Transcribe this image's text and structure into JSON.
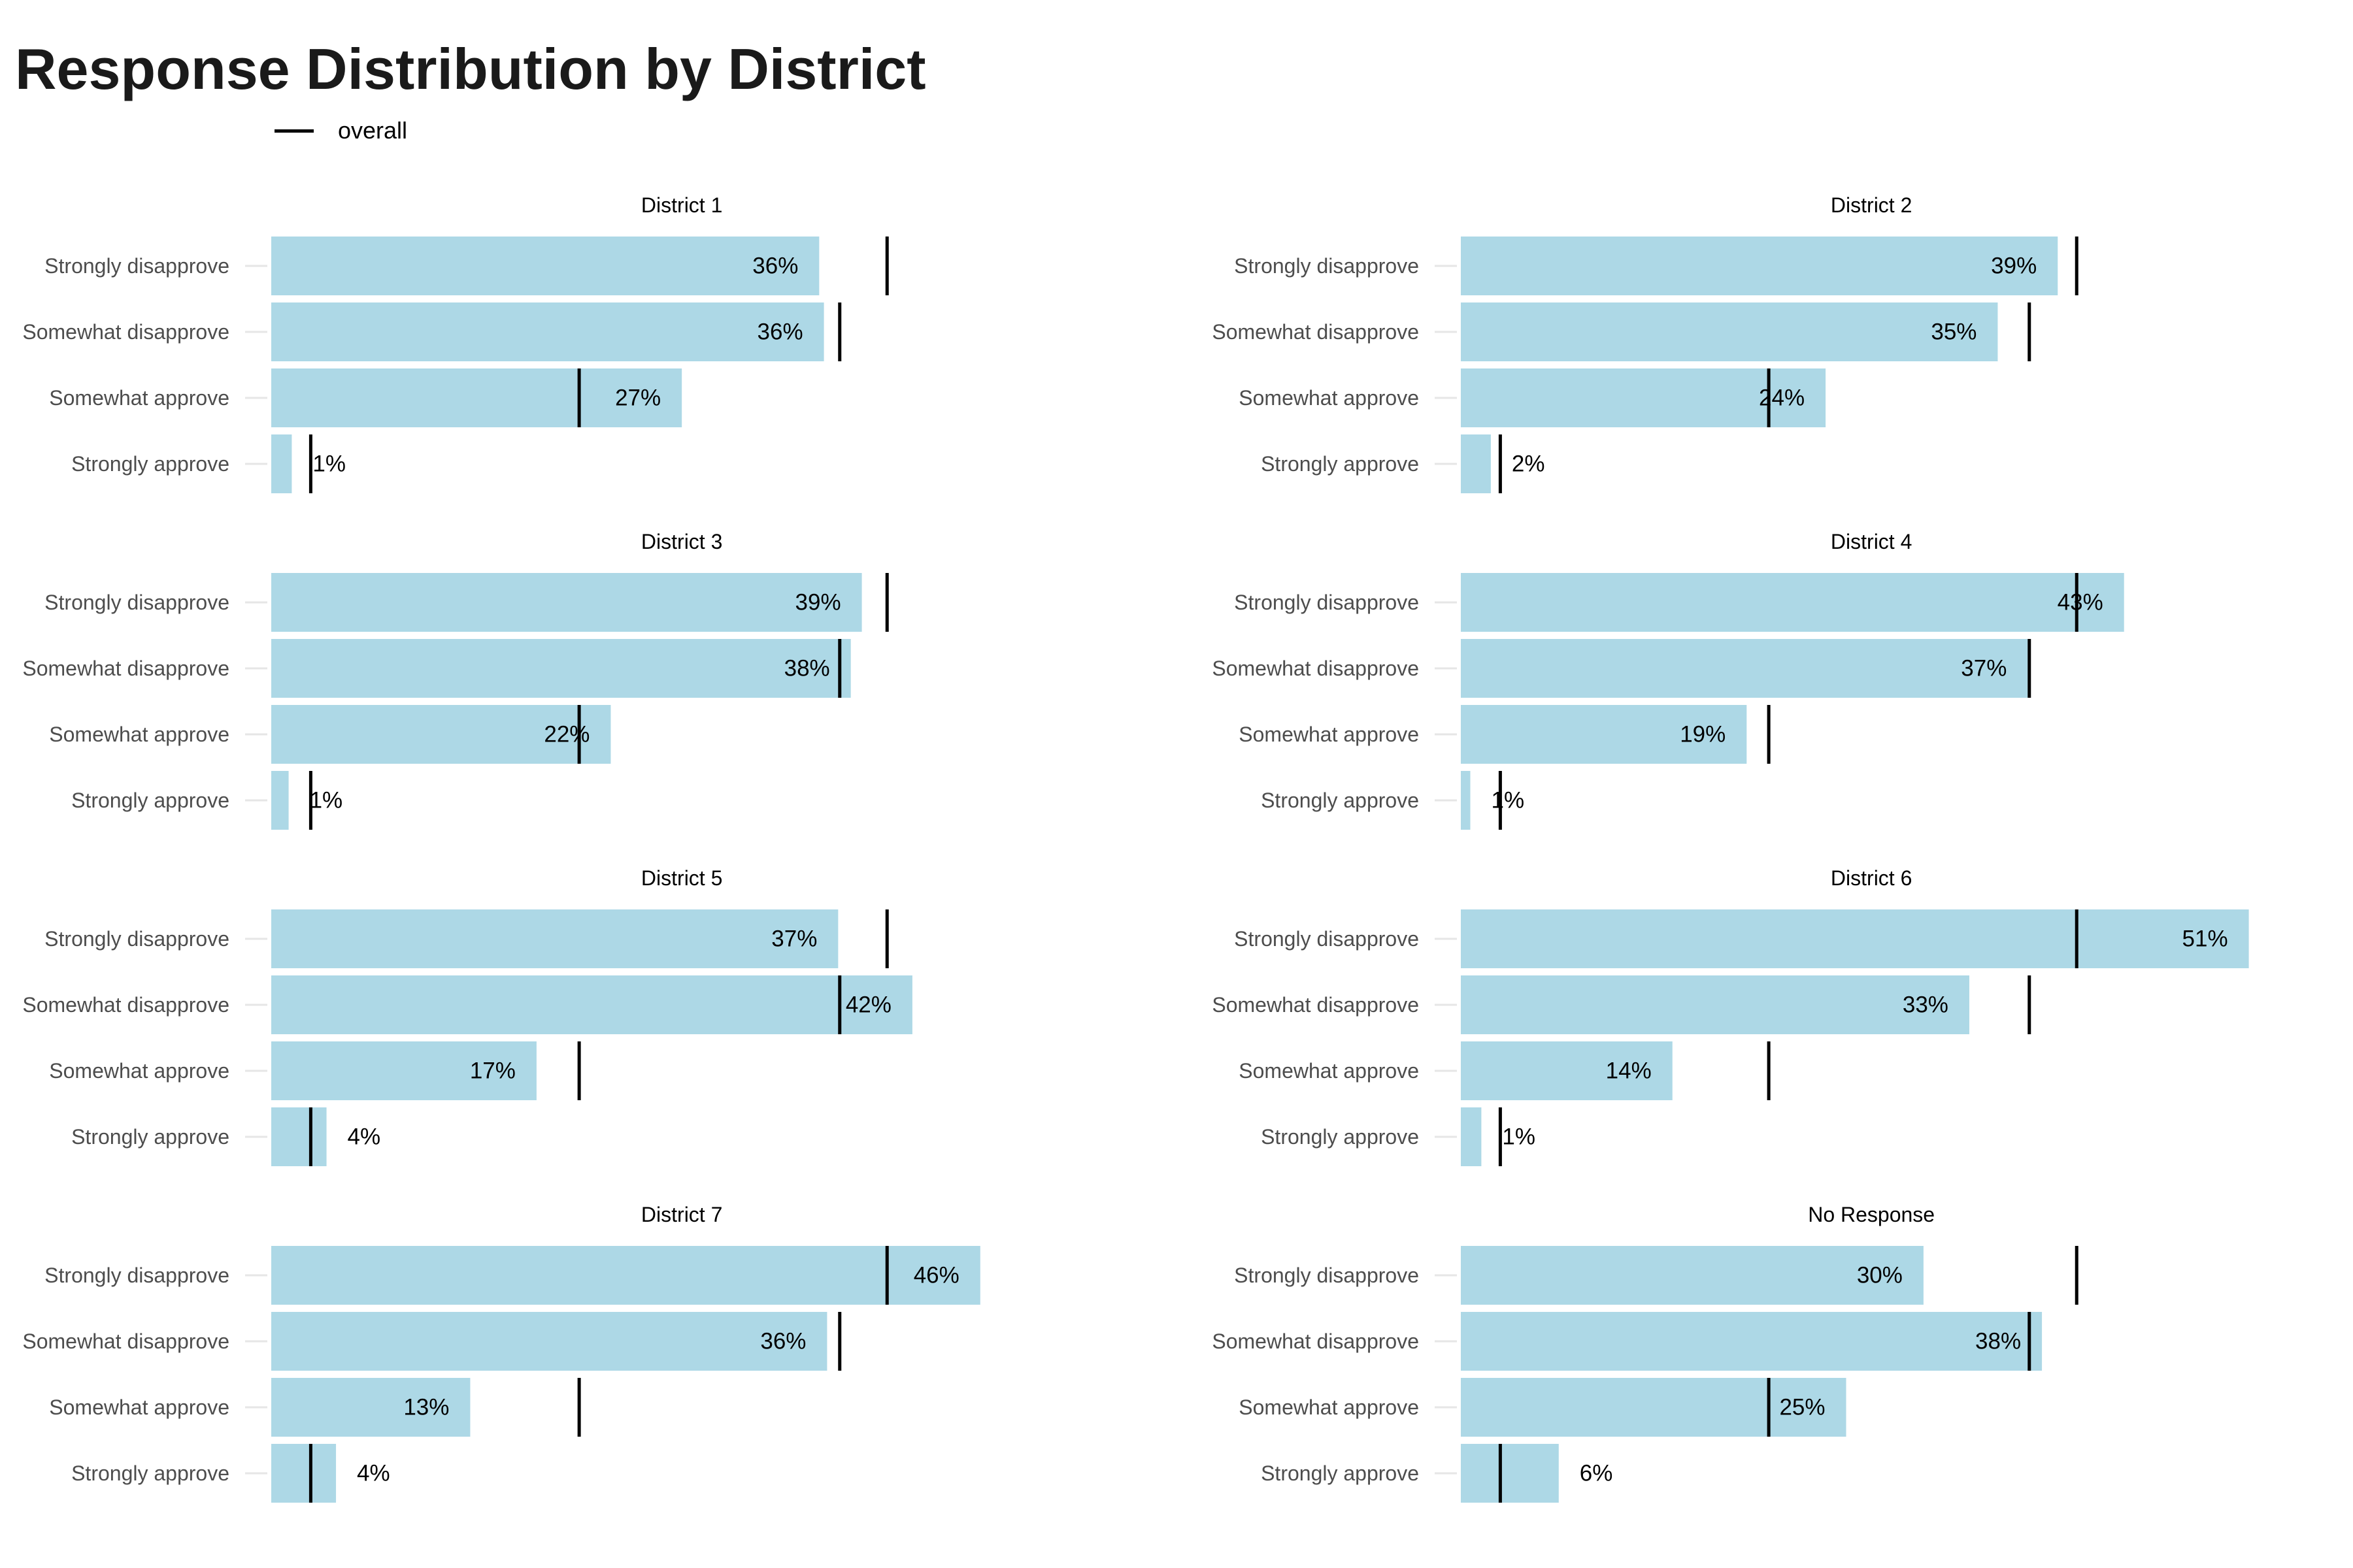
{
  "chart_data": {
    "type": "bar",
    "orientation": "horizontal",
    "title": "Response Distribution by District",
    "legend": {
      "label": "overall",
      "position": "top-left"
    },
    "categories": [
      "Strongly disapprove",
      "Somewhat disapprove",
      "Somewhat approve",
      "Strongly approve"
    ],
    "overall": [
      39,
      36,
      19.5,
      2.5
    ],
    "xlim": [
      0,
      52
    ],
    "grid": false,
    "bar_color": "#add8e6",
    "marker_color": "#000000",
    "panels": [
      {
        "name": "District 1",
        "values": [
          34.7,
          35,
          26,
          1.3
        ],
        "labels": [
          "36%",
          "36%",
          "27%",
          "1%"
        ]
      },
      {
        "name": "District 2",
        "values": [
          37.8,
          34,
          23.1,
          1.9
        ],
        "labels": [
          "39%",
          "35%",
          "24%",
          "2%"
        ]
      },
      {
        "name": "District 3",
        "values": [
          37.4,
          36.7,
          21.5,
          1.1
        ],
        "labels": [
          "39%",
          "38%",
          "22%",
          "1%"
        ]
      },
      {
        "name": "District 4",
        "values": [
          42,
          35.9,
          18.1,
          0.6
        ],
        "labels": [
          "43%",
          "37%",
          "19%",
          "1%"
        ]
      },
      {
        "name": "District 5",
        "values": [
          35.9,
          40.6,
          16.8,
          3.5
        ],
        "labels": [
          "37%",
          "42%",
          "17%",
          "4%"
        ]
      },
      {
        "name": "District 6",
        "values": [
          49.9,
          32.2,
          13.4,
          1.3
        ],
        "labels": [
          "51%",
          "33%",
          "14%",
          "1%"
        ]
      },
      {
        "name": "District 7",
        "values": [
          44.9,
          35.2,
          12.6,
          4.1
        ],
        "labels": [
          "46%",
          "36%",
          "13%",
          "4%"
        ]
      },
      {
        "name": "No Response",
        "values": [
          29.3,
          36.8,
          24.4,
          6.2
        ],
        "labels": [
          "30%",
          "38%",
          "25%",
          "6%"
        ]
      }
    ]
  }
}
